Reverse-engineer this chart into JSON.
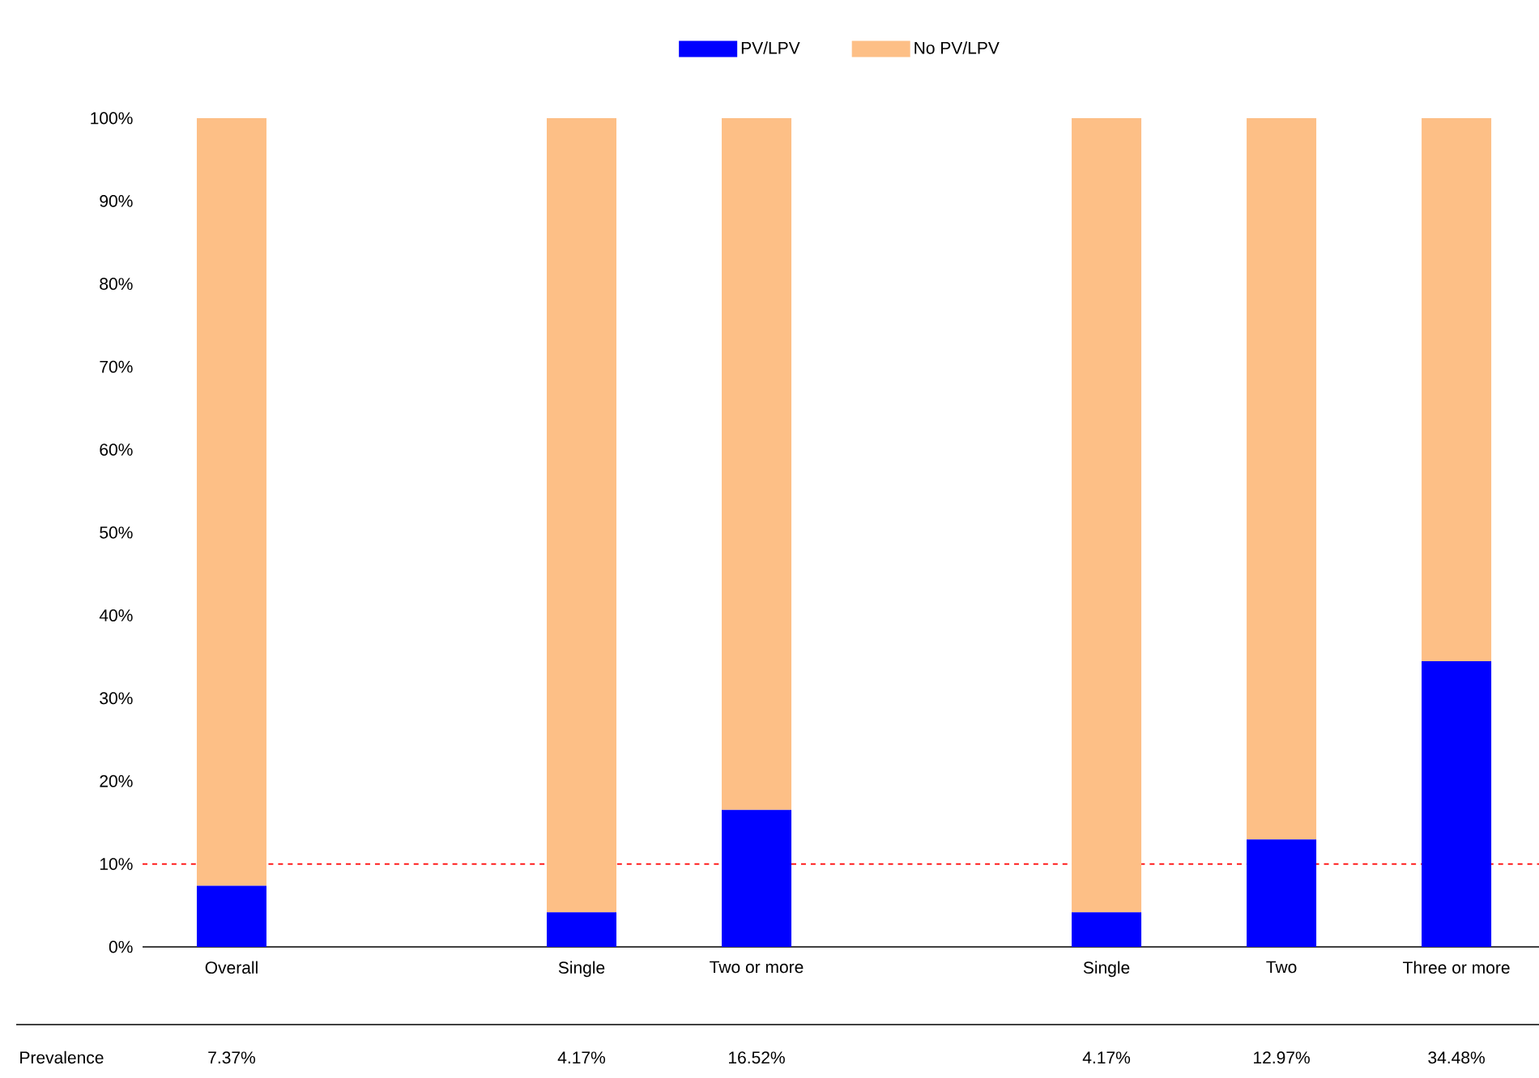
{
  "chart_data": {
    "type": "bar",
    "stacked": true,
    "categories": [
      "Overall",
      null,
      "Single",
      "Two or more",
      null,
      "Single",
      "Two",
      "Three or more"
    ],
    "series": [
      {
        "name": "PV/LPV",
        "color": "#0000ff",
        "values": [
          7.37,
          null,
          4.17,
          16.52,
          null,
          4.17,
          12.97,
          34.48
        ],
        "value_labels": [
          "7.37%",
          null,
          "4.17%",
          "16.52%",
          null,
          "4.17%",
          "12.97%",
          "34.48%"
        ]
      },
      {
        "name": "No PV/LPV",
        "color": "#fdbf86",
        "values": [
          92.63,
          null,
          95.83,
          83.48,
          null,
          95.83,
          87.03,
          65.52
        ]
      }
    ],
    "ylim": [
      0,
      100
    ],
    "yticks": [
      {
        "value": 0,
        "label": "0%"
      },
      {
        "value": 10,
        "label": "10%"
      },
      {
        "value": 20,
        "label": "20%"
      },
      {
        "value": 30,
        "label": "30%"
      },
      {
        "value": 40,
        "label": "40%"
      },
      {
        "value": 50,
        "label": "50%"
      },
      {
        "value": 60,
        "label": "60%"
      },
      {
        "value": 70,
        "label": "70%"
      },
      {
        "value": 80,
        "label": "80%"
      },
      {
        "value": 90,
        "label": "90%"
      },
      {
        "value": 100,
        "label": "100%"
      }
    ],
    "ref_lines": [
      {
        "axis": "y",
        "value": 10,
        "color": "#ff0000",
        "line_style": "dashed"
      }
    ],
    "legend": "top",
    "annotations": [
      "Prevalence"
    ]
  }
}
